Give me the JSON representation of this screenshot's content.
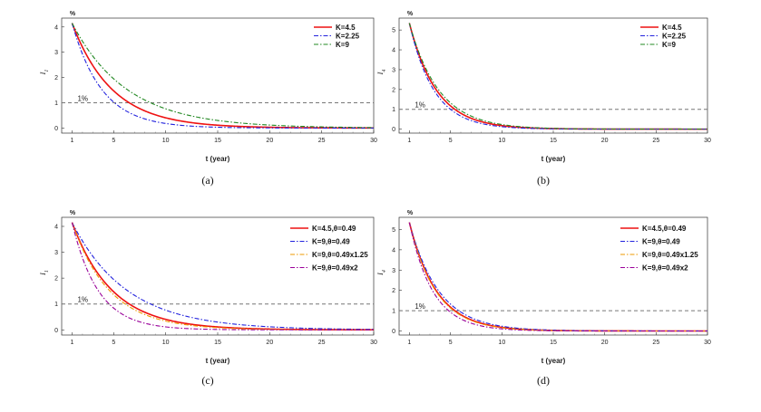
{
  "chart_data": [
    {
      "type": "line",
      "caption": "(a)",
      "xlabel": "t (year)",
      "ylabel": "I_1",
      "unit_label": "%",
      "xticks": [
        1,
        5,
        10,
        15,
        20,
        25,
        30
      ],
      "yticks": [
        0,
        1,
        2,
        3,
        4
      ],
      "xlim": [
        0,
        30
      ],
      "ylim": [
        -0.2,
        4.35
      ],
      "legend_position": "top-right",
      "reference_line": {
        "y": 1,
        "label": "1%",
        "color": "#777777"
      },
      "series": [
        {
          "name": "K=4.5",
          "color": "#ee1111",
          "dash": "",
          "width": 1.6,
          "peak": 4.15,
          "rate": 0.24
        },
        {
          "name": "K=2.25",
          "color": "#2222dd",
          "dash": "5,2,1.5,2",
          "width": 1.1,
          "peak": 4.15,
          "rate": 0.33
        },
        {
          "name": "K=9",
          "color": "#228822",
          "dash": "5,2,1.5,2",
          "width": 1.1,
          "peak": 4.15,
          "rate": 0.17
        }
      ]
    },
    {
      "type": "line",
      "caption": "(b)",
      "xlabel": "t (year)",
      "ylabel": "I_4",
      "unit_label": "%",
      "xticks": [
        1,
        5,
        10,
        15,
        20,
        25,
        30
      ],
      "yticks": [
        0,
        1,
        2,
        3,
        4,
        5
      ],
      "xlim": [
        0,
        30
      ],
      "ylim": [
        -0.2,
        5.6
      ],
      "legend_position": "top-right",
      "reference_line": {
        "y": 1,
        "label": "1%",
        "color": "#777777"
      },
      "series": [
        {
          "name": "K=4.5",
          "color": "#ee1111",
          "dash": "",
          "width": 1.6,
          "peak": 5.35,
          "rate": 0.36
        },
        {
          "name": "K=2.25",
          "color": "#2222dd",
          "dash": "5,2,1.5,2",
          "width": 1.1,
          "peak": 5.35,
          "rate": 0.4
        },
        {
          "name": "K=9",
          "color": "#228822",
          "dash": "5,2,1.5,2",
          "width": 1.1,
          "peak": 5.35,
          "rate": 0.33
        }
      ]
    },
    {
      "type": "line",
      "caption": "(c)",
      "xlabel": "t (year)",
      "ylabel": "I_1",
      "unit_label": "%",
      "xticks": [
        1,
        5,
        10,
        15,
        20,
        25,
        30
      ],
      "yticks": [
        0,
        1,
        2,
        3,
        4
      ],
      "xlim": [
        0,
        30
      ],
      "ylim": [
        -0.2,
        4.35
      ],
      "legend_position": "top-right",
      "reference_line": {
        "y": 1,
        "label": "1%",
        "color": "#777777"
      },
      "series": [
        {
          "name": "K=4.5,θ=0.49",
          "color": "#ee1111",
          "dash": "",
          "width": 1.6,
          "peak": 4.15,
          "rate": 0.24
        },
        {
          "name": "K=9,θ=0.49",
          "color": "#2222dd",
          "dash": "5,2,1.5,2",
          "width": 1.1,
          "peak": 4.15,
          "rate": 0.17
        },
        {
          "name": "K=9,θ=0.49x1.25",
          "color": "#ee9900",
          "dash": "5,2,1.5,2",
          "width": 1.1,
          "peak": 4.15,
          "rate": 0.26
        },
        {
          "name": "K=9,θ=0.49x2",
          "color": "#990099",
          "dash": "5,2,1.5,2",
          "width": 1.1,
          "peak": 4.15,
          "rate": 0.38
        }
      ]
    },
    {
      "type": "line",
      "caption": "(d)",
      "xlabel": "t (year)",
      "ylabel": "I_4",
      "unit_label": "%",
      "xticks": [
        1,
        5,
        10,
        15,
        20,
        25,
        30
      ],
      "yticks": [
        0,
        1,
        2,
        3,
        4,
        5
      ],
      "xlim": [
        0,
        30
      ],
      "ylim": [
        -0.2,
        5.6
      ],
      "legend_position": "top-right",
      "reference_line": {
        "y": 1,
        "label": "1%",
        "color": "#777777"
      },
      "series": [
        {
          "name": "K=4.5,θ=0.49",
          "color": "#ee1111",
          "dash": "",
          "width": 1.6,
          "peak": 5.35,
          "rate": 0.36
        },
        {
          "name": "K=9,θ=0.49",
          "color": "#2222dd",
          "dash": "5,2,1.5,2",
          "width": 1.1,
          "peak": 5.35,
          "rate": 0.33
        },
        {
          "name": "K=9,θ=0.49x1.25",
          "color": "#ee9900",
          "dash": "5,2,1.5,2",
          "width": 1.1,
          "peak": 5.35,
          "rate": 0.37
        },
        {
          "name": "K=9,θ=0.49x2",
          "color": "#990099",
          "dash": "5,2,1.5,2",
          "width": 1.1,
          "peak": 5.35,
          "rate": 0.42
        }
      ]
    }
  ]
}
